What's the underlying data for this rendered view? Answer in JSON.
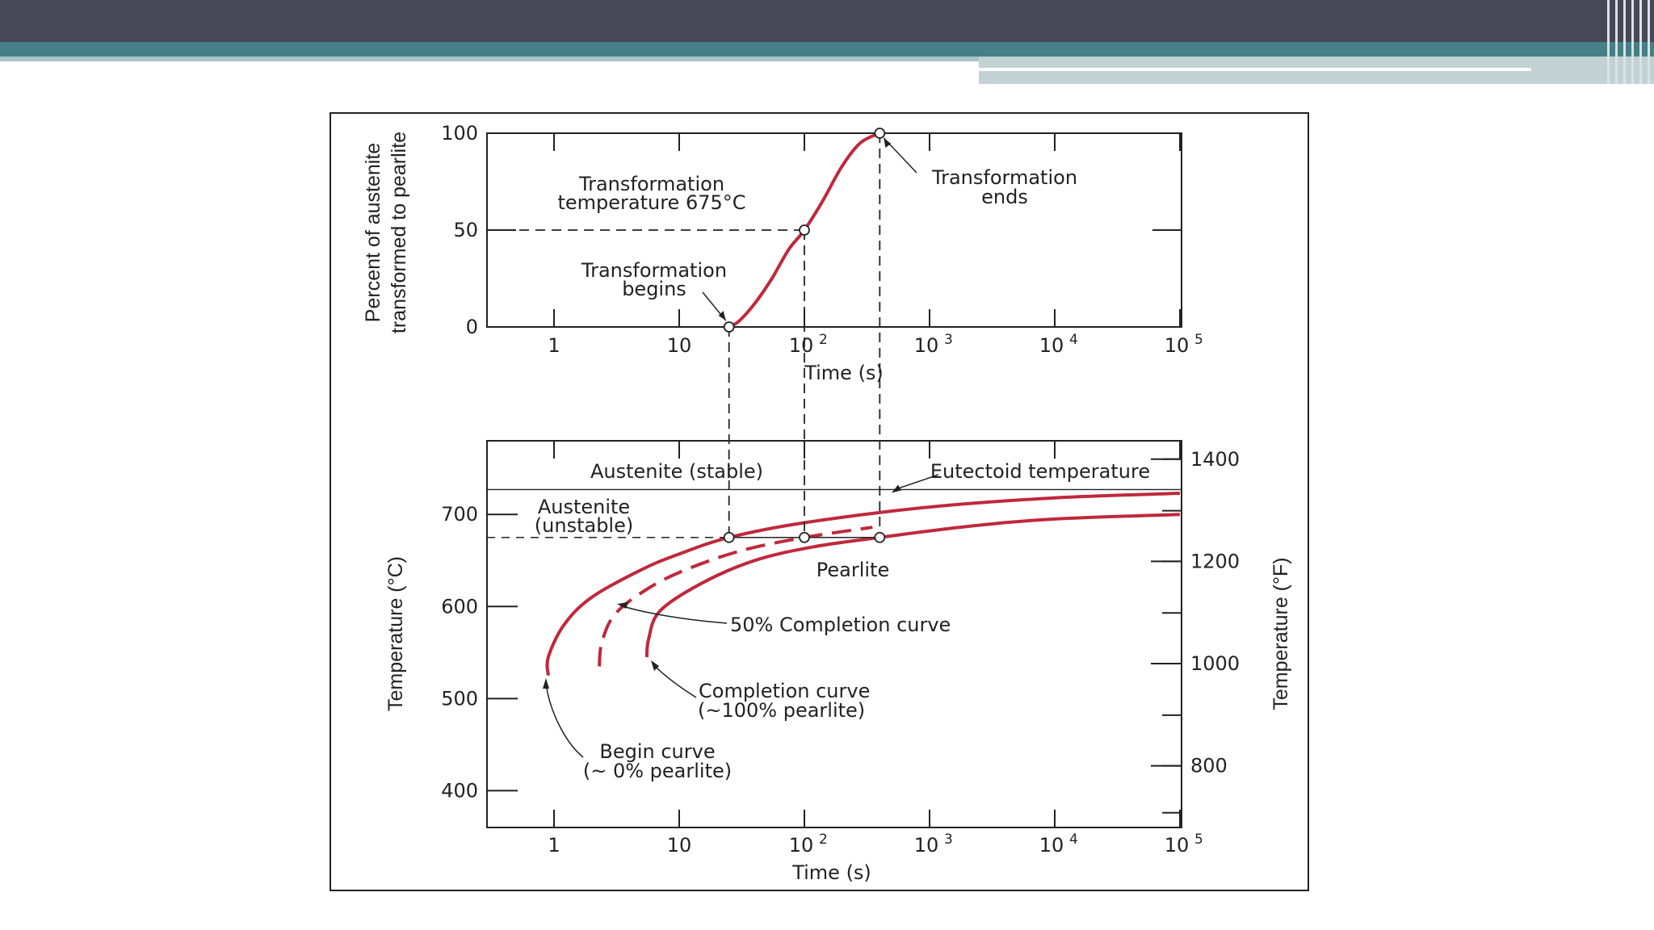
{
  "slide": {
    "header_color": "#474757",
    "accent_color": "#467f86"
  },
  "chart_data": [
    {
      "type": "line",
      "title": "",
      "xlabel": "Time (s)",
      "ylabel_line1": "Percent of austenite",
      "ylabel_line2": "transformed to pearlite",
      "x_scale": "log",
      "xlim": [
        0.3,
        150000
      ],
      "ylim": [
        0,
        100
      ],
      "x_ticks": [
        {
          "value": 1,
          "label": "1"
        },
        {
          "value": 10,
          "label": "10"
        },
        {
          "value": 100,
          "label": "10",
          "exp": "2"
        },
        {
          "value": 1000,
          "label": "10",
          "exp": "3"
        },
        {
          "value": 10000,
          "label": "10",
          "exp": "4"
        },
        {
          "value": 100000,
          "label": "10",
          "exp": "5"
        }
      ],
      "y_ticks": [
        {
          "value": 0,
          "label": "0"
        },
        {
          "value": 50,
          "label": "50"
        },
        {
          "value": 100,
          "label": "100"
        }
      ],
      "series": [
        {
          "color": "#c0283b",
          "points": [
            [
              25,
              0
            ],
            [
              30,
              3
            ],
            [
              40,
              12
            ],
            [
              55,
              25
            ],
            [
              75,
              40
            ],
            [
              100,
              50
            ],
            [
              140,
              65
            ],
            [
              200,
              83
            ],
            [
              280,
              95
            ],
            [
              400,
              100
            ]
          ]
        }
      ],
      "markers": [
        [
          25,
          0
        ],
        [
          100,
          50
        ],
        [
          400,
          100
        ]
      ],
      "annotations": {
        "temp_label_line1": "Transformation",
        "temp_label_line2": "temperature 675°C",
        "begins_line1": "Transformation",
        "begins_line2": "begins",
        "ends_line1": "Transformation",
        "ends_line2": "ends"
      }
    },
    {
      "type": "line",
      "title": "",
      "xlabel": "Time (s)",
      "ylabel_left": "Temperature (°C)",
      "ylabel_right": "Temperature (°F)",
      "x_scale": "log",
      "xlim": [
        0.3,
        150000
      ],
      "ylim": [
        360,
        780
      ],
      "x_ticks": [
        {
          "value": 1,
          "label": "1"
        },
        {
          "value": 10,
          "label": "10"
        },
        {
          "value": 100,
          "label": "10",
          "exp": "2"
        },
        {
          "value": 1000,
          "label": "10",
          "exp": "3"
        },
        {
          "value": 10000,
          "label": "10",
          "exp": "4"
        },
        {
          "value": 100000,
          "label": "10",
          "exp": "5"
        }
      ],
      "y_ticks_left": [
        {
          "value": 400,
          "label": "400"
        },
        {
          "value": 500,
          "label": "500"
        },
        {
          "value": 600,
          "label": "600"
        },
        {
          "value": 700,
          "label": "700"
        }
      ],
      "y_ticks_right_minor_c": [
        376,
        427,
        482,
        538,
        593,
        649,
        704,
        760
      ],
      "y_ticks_right": [
        {
          "value": 427,
          "label": "800"
        },
        {
          "value": 538,
          "label": "1000"
        },
        {
          "value": 649,
          "label": "1200"
        },
        {
          "value": 760,
          "label": "1400"
        }
      ],
      "eutectoid_temp": 727,
      "isotherm_temp": 675,
      "series": [
        {
          "name": "Begin curve (~ 0% pearlite)",
          "color": "#c0283b",
          "dash": false,
          "points": [
            [
              0.9,
              525
            ],
            [
              0.9,
              545
            ],
            [
              1.2,
              580
            ],
            [
              2,
              610
            ],
            [
              5,
              640
            ],
            [
              10,
              657
            ],
            [
              25,
              675
            ],
            [
              100,
              691
            ],
            [
              1000,
              708
            ],
            [
              10000,
              718
            ],
            [
              100000,
              723
            ]
          ]
        },
        {
          "name": "50% Completion curve",
          "color": "#c0283b",
          "dash": true,
          "points": [
            [
              2.3,
              535
            ],
            [
              2.4,
              560
            ],
            [
              3,
              590
            ],
            [
              5,
              615
            ],
            [
              10,
              637
            ],
            [
              30,
              660
            ],
            [
              100,
              675
            ],
            [
              350,
              686
            ]
          ]
        },
        {
          "name": "Completion curve (~100% pearlite)",
          "color": "#c0283b",
          "dash": false,
          "points": [
            [
              5.5,
              545
            ],
            [
              5.7,
              565
            ],
            [
              7,
              595
            ],
            [
              15,
              625
            ],
            [
              40,
              650
            ],
            [
              120,
              665
            ],
            [
              400,
              675
            ],
            [
              2000,
              687
            ],
            [
              10000,
              695
            ],
            [
              100000,
              700
            ]
          ]
        }
      ],
      "markers": [
        [
          25,
          675
        ],
        [
          100,
          675
        ],
        [
          400,
          675
        ]
      ],
      "labels": {
        "austenite_stable": "Austenite (stable)",
        "austenite_unstable_line1": "Austenite",
        "austenite_unstable_line2": "(unstable)",
        "pearlite": "Pearlite",
        "eutectoid": "Eutectoid temperature",
        "fifty_pct": "50% Completion curve",
        "completion_line1": "Completion curve",
        "completion_line2": "(~100% pearlite)",
        "begin_line1": "Begin curve",
        "begin_line2": "(~ 0% pearlite)"
      }
    }
  ]
}
